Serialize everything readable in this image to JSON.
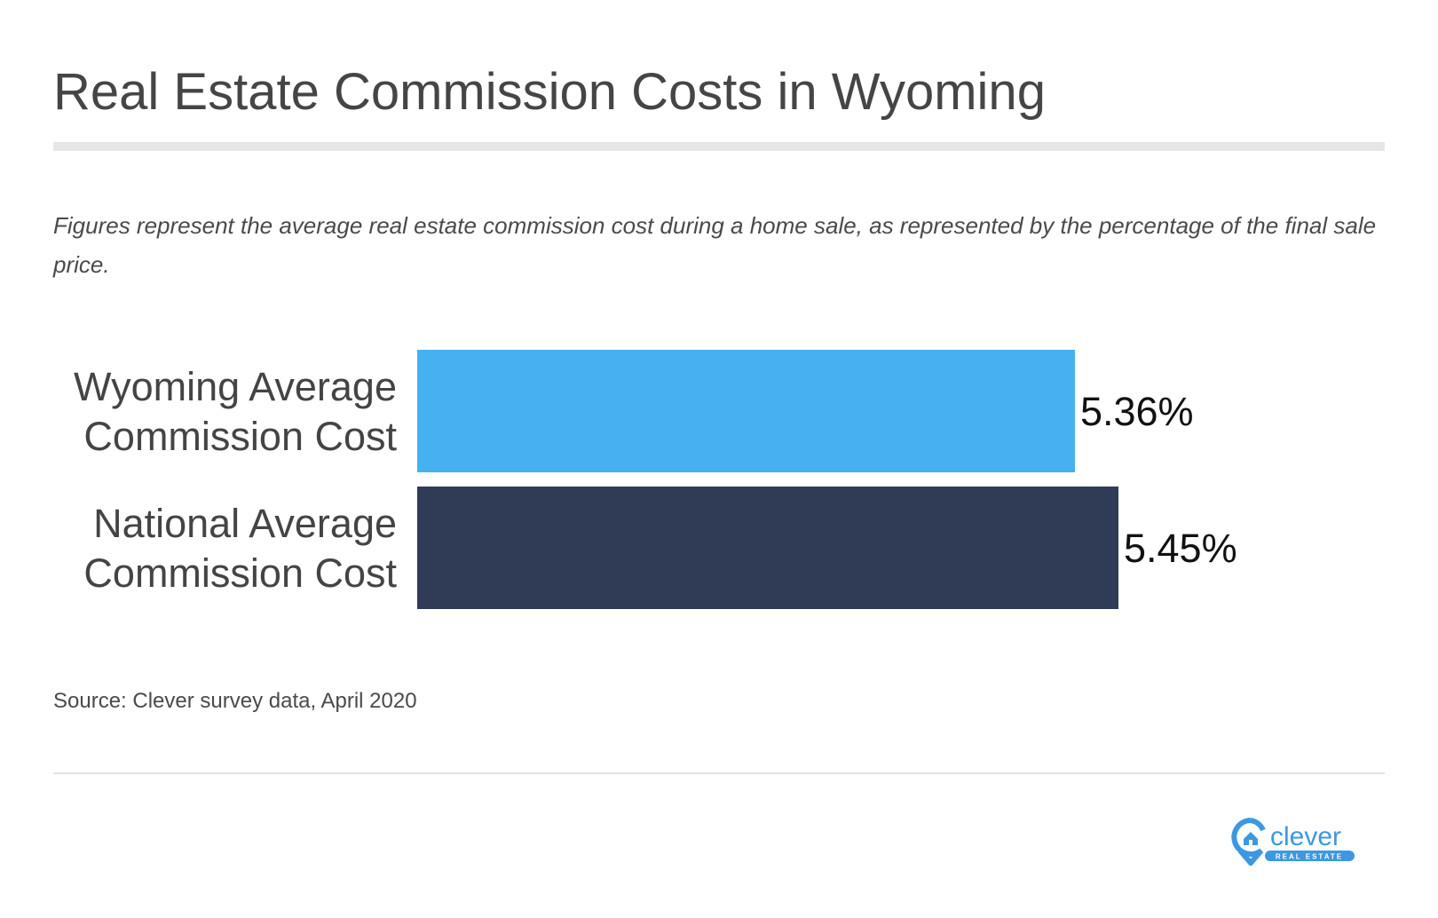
{
  "title": "Real Estate Commission Costs in Wyoming",
  "subtitle": "Figures represent the average real estate commission cost during a home sale, as represented by the percentage of the final sale price.",
  "source": "Source: Clever survey data, April 2020",
  "logo": {
    "text": "clever",
    "subtext": "REAL ESTATE",
    "color": "#3d98e0"
  },
  "chart_data": {
    "type": "bar",
    "orientation": "horizontal",
    "categories": [
      [
        "Wyoming Average",
        "Commission Cost"
      ],
      [
        "National Average",
        "Commission Cost"
      ]
    ],
    "values": [
      5.36,
      5.45
    ],
    "labels": [
      "5.36%",
      "5.45%"
    ],
    "colors": [
      "#45b1ef",
      "#303c55"
    ],
    "xlim": [
      4,
      5.45
    ],
    "grid": false
  }
}
